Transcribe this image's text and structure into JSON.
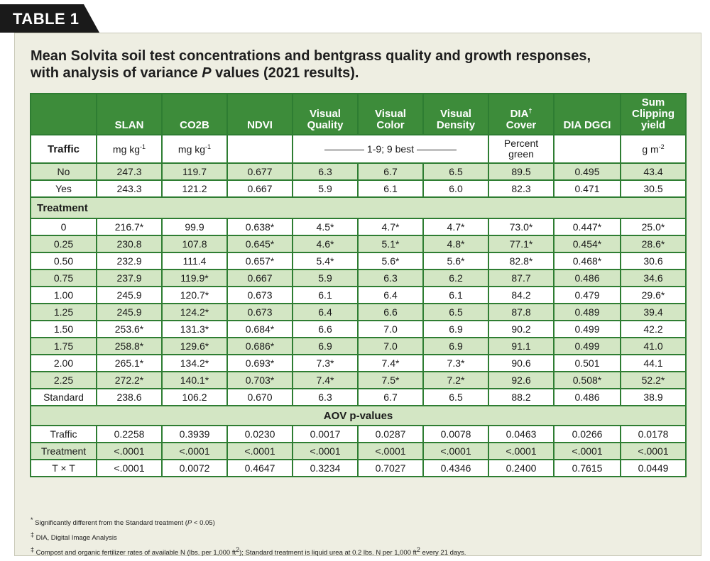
{
  "tab_label": "TABLE 1",
  "title_part1": "Mean Solvita soil test concentrations and bentgrass quality and growth responses,",
  "title_part2": "with analysis of variance ",
  "title_italic": "P",
  "title_part3": " values (2021 results).",
  "headers": [
    "",
    "SLAN",
    "CO2B",
    "NDVI",
    "Visual Quality",
    "Visual Color",
    "Visual Density",
    "DIA",
    "DIA DGCI",
    "Sum Clipping yield"
  ],
  "header_dia_suffix": "Cover",
  "header_dia_mark": "†",
  "units": {
    "label": "Traffic",
    "slan": "mg kg",
    "slan_sup": "-1",
    "co2b": "mg kg",
    "co2b_sup": "-1",
    "range": "———— 1-9; 9 best ————",
    "cover": "Percent green",
    "clip": "g m",
    "clip_sup": "-2"
  },
  "traffic_rows": [
    [
      "No",
      "247.3",
      "119.7",
      "0.677",
      "6.3",
      "6.7",
      "6.5",
      "89.5",
      "0.495",
      "43.4"
    ],
    [
      "Yes",
      "243.3",
      "121.2",
      "0.667",
      "5.9",
      "6.1",
      "6.0",
      "82.3",
      "0.471",
      "30.5"
    ]
  ],
  "treatment_label": "Treatment",
  "treatment_rows": [
    [
      "0",
      "216.7*",
      "99.9",
      "0.638*",
      "4.5*",
      "4.7*",
      "4.7*",
      "73.0*",
      "0.447*",
      "25.0*"
    ],
    [
      "0.25",
      "230.8",
      "107.8",
      "0.645*",
      "4.6*",
      "5.1*",
      "4.8*",
      "77.1*",
      "0.454*",
      "28.6*"
    ],
    [
      "0.50",
      "232.9",
      "111.4",
      "0.657*",
      "5.4*",
      "5.6*",
      "5.6*",
      "82.8*",
      "0.468*",
      "30.6"
    ],
    [
      "0.75",
      "237.9",
      "119.9*",
      "0.667",
      "5.9",
      "6.3",
      "6.2",
      "87.7",
      "0.486",
      "34.6"
    ],
    [
      "1.00",
      "245.9",
      "120.7*",
      "0.673",
      "6.1",
      "6.4",
      "6.1",
      "84.2",
      "0.479",
      "29.6*"
    ],
    [
      "1.25",
      "245.9",
      "124.2*",
      "0.673",
      "6.4",
      "6.6",
      "6.5",
      "87.8",
      "0.489",
      "39.4"
    ],
    [
      "1.50",
      "253.6*",
      "131.3*",
      "0.684*",
      "6.6",
      "7.0",
      "6.9",
      "90.2",
      "0.499",
      "42.2"
    ],
    [
      "1.75",
      "258.8*",
      "129.6*",
      "0.686*",
      "6.9",
      "7.0",
      "6.9",
      "91.1",
      "0.499",
      "41.0"
    ],
    [
      "2.00",
      "265.1*",
      "134.2*",
      "0.693*",
      "7.3*",
      "7.4*",
      "7.3*",
      "90.6",
      "0.501",
      "44.1"
    ],
    [
      "2.25",
      "272.2*",
      "140.1*",
      "0.703*",
      "7.4*",
      "7.5*",
      "7.2*",
      "92.6",
      "0.508*",
      "52.2*"
    ],
    [
      "Standard",
      "238.6",
      "106.2",
      "0.670",
      "6.3",
      "6.7",
      "6.5",
      "88.2",
      "0.486",
      "38.9"
    ]
  ],
  "aov_label": "AOV p-values",
  "aov_rows": [
    [
      "Traffic",
      "0.2258",
      "0.3939",
      "0.0230",
      "0.0017",
      "0.0287",
      "0.0078",
      "0.0463",
      "0.0266",
      "0.0178"
    ],
    [
      "Treatment",
      "<.0001",
      "<.0001",
      "<.0001",
      "<.0001",
      "<.0001",
      "<.0001",
      "<.0001",
      "<.0001",
      "<.0001"
    ],
    [
      "T × T",
      "<.0001",
      "0.0072",
      "0.4647",
      "0.3234",
      "0.7027",
      "0.4346",
      "0.2400",
      "0.7615",
      "0.0449"
    ]
  ],
  "footnotes": [
    {
      "mark": "*",
      "text_a": " Significantly different from the Standard treatment (",
      "italic": "P",
      "text_b": " < 0.05)"
    },
    {
      "mark": "‡",
      "text_a": " DIA, Digital Image Analysis",
      "italic": "",
      "text_b": ""
    },
    {
      "mark": "‡",
      "text_a": " Compost and organic fertilizer rates of available N (lbs. per 1,000 ft",
      "sup": "2",
      "text_b": "); Standard treatment is liquid urea at 0.2 lbs. N per 1,000 ft",
      "sup2": "2",
      "text_c": " every 21 days."
    }
  ],
  "colors": {
    "header_green": "#3d8c3a",
    "border_green": "#2e7d32",
    "row_shade": "#d3e6c4",
    "panel_bg": "#eeeee2",
    "tab_black": "#1a1a1a"
  }
}
